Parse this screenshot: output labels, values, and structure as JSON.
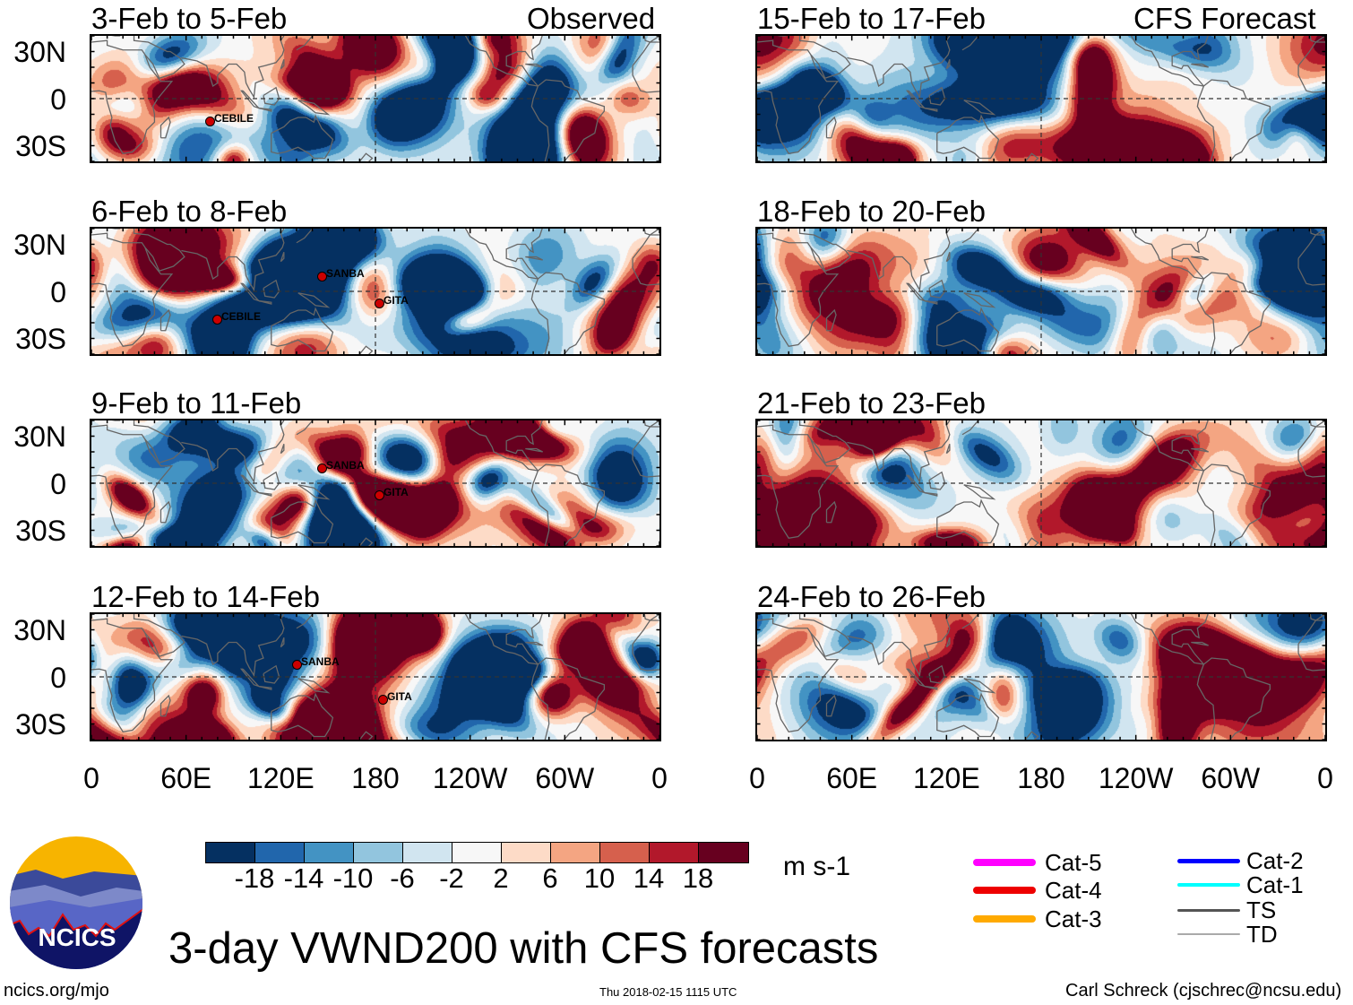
{
  "header": {
    "left_label": "Observed",
    "right_label": "CFS Forecast"
  },
  "panels": [
    {
      "title": "3-Feb to 5-Feb",
      "column": "observed",
      "seed": 11,
      "storms": [
        "CEBILE"
      ]
    },
    {
      "title": "6-Feb to 8-Feb",
      "column": "observed",
      "seed": 23,
      "storms": [
        "SANBA",
        "GITA",
        "CEBILE"
      ]
    },
    {
      "title": "9-Feb to 11-Feb",
      "column": "observed",
      "seed": 37,
      "storms": [
        "SANBA",
        "GITA"
      ]
    },
    {
      "title": "12-Feb to 14-Feb",
      "column": "observed",
      "seed": 41,
      "storms": [
        "SANBA",
        "GITA"
      ]
    },
    {
      "title": "15-Feb to 17-Feb",
      "column": "forecast",
      "seed": 53
    },
    {
      "title": "18-Feb to 20-Feb",
      "column": "forecast",
      "seed": 67
    },
    {
      "title": "21-Feb to 23-Feb",
      "column": "forecast",
      "seed": 79
    },
    {
      "title": "24-Feb to 26-Feb",
      "column": "forecast",
      "seed": 83
    }
  ],
  "axes": {
    "y_ticks": [
      "30N",
      "0",
      "30S"
    ],
    "x_ticks": [
      "0",
      "60E",
      "120E",
      "180",
      "120W",
      "60W",
      "0"
    ]
  },
  "chart_data": {
    "type": "heatmap",
    "title": "3-day VWND200 with CFS forecasts",
    "variable": "200-hPa meridional wind",
    "units": "m s-1",
    "lat_range": [
      -40,
      40
    ],
    "lon_range": [
      0,
      360
    ],
    "levels": [
      -18,
      -14,
      -10,
      -6,
      -2,
      2,
      6,
      10,
      14,
      18
    ],
    "level_labels": [
      "-18",
      "-14",
      "-10",
      "-6",
      "-2",
      "2",
      "6",
      "10",
      "14",
      "18"
    ],
    "colors": [
      "#053061",
      "#2166ac",
      "#4393c3",
      "#92c5de",
      "#d1e5f0",
      "#f7f7f7",
      "#fddbc7",
      "#f4a582",
      "#d6604d",
      "#b2182b",
      "#67001f"
    ]
  },
  "legend": {
    "items": [
      {
        "label": "Cat-5",
        "color": "#ff00ff"
      },
      {
        "label": "Cat-4",
        "color": "#ee0000"
      },
      {
        "label": "Cat-3",
        "color": "#ffaa00"
      },
      {
        "label": "Cat-2",
        "color": "#0000ff"
      },
      {
        "label": "Cat-1",
        "color": "#00ffff"
      },
      {
        "label": "TS",
        "color": "#555555"
      },
      {
        "label": "TD",
        "color": "#aaaaaa"
      }
    ]
  },
  "footer": {
    "logo_text": "NCICS",
    "url": "ncics.org/mjo",
    "timestamp": "Thu 2018-02-15 1115 UTC",
    "credit": "Carl Schreck (cjschrec@ncsu.edu)"
  }
}
